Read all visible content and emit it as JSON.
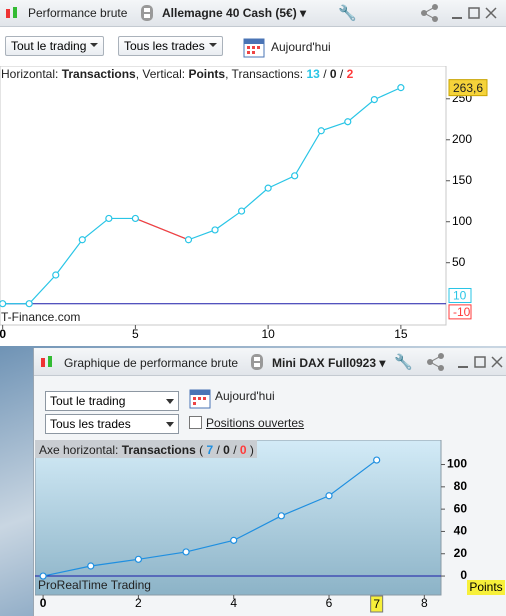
{
  "top_window": {
    "title": "Performance brute",
    "instrument": "Allemagne 40 Cash (5€)",
    "scope": "Tout le trading",
    "trades": "Tous les trades",
    "period": "Aujourd'hui"
  },
  "bottom_window": {
    "title": "Graphique de performance brute",
    "instrument": "Mini DAX Full0923",
    "scope": "Tout le trading",
    "trades": "Tous les trades",
    "period": "Aujourd'hui",
    "checkbox": "Positions ouvertes"
  },
  "chart_data": [
    {
      "type": "line",
      "header": {
        "horizontal": "Horizontal:",
        "x_label": "Transactions",
        "vertical": ", Vertical:",
        "y_label": "Points",
        "count_label": ", Transactions:",
        "separator": "/",
        "counts": [
          13,
          0,
          2
        ]
      },
      "x": [
        0,
        1,
        2,
        3,
        4,
        5,
        7,
        8,
        9,
        10,
        11,
        12,
        13,
        14,
        15
      ],
      "values": [
        0,
        0,
        35,
        78,
        104,
        104,
        78,
        90,
        113,
        141,
        156,
        211,
        222,
        249,
        263.6
      ],
      "last_label": {
        "value": 263.6,
        "label": "263,6"
      },
      "side_labels": [
        10,
        -10
      ],
      "xlim": [
        -0.1,
        16.7
      ],
      "ylim": [
        -26,
        290
      ],
      "xticks": [
        0,
        5,
        10,
        15
      ],
      "yticks": [
        50,
        100,
        150,
        200,
        250
      ],
      "color": "#29c5e6",
      "loss_color": "#ff3b3b",
      "watermark": "T-Finance.com",
      "grid": false
    },
    {
      "type": "line",
      "header": {
        "horizontal": "Axe horizontal:",
        "x_label": "Transactions",
        "open": "(",
        "separator": "/",
        "close": ")",
        "counts": [
          7,
          0,
          0
        ]
      },
      "y_label": "Points",
      "x": [
        0,
        1,
        2,
        3,
        4,
        5,
        6,
        7
      ],
      "values": [
        0,
        9,
        15,
        21.6,
        32,
        54,
        72,
        104
      ],
      "highlight_x": 7,
      "xlim": [
        -0.17,
        8.35
      ],
      "ylim": [
        -17,
        122
      ],
      "xticks": [
        0,
        2,
        4,
        6,
        8
      ],
      "yticks": [
        0,
        20,
        40,
        60,
        80,
        100
      ],
      "color": "#1f8fe0",
      "loss_color": "#ff3b3b",
      "watermark": "ProRealTime Trading",
      "grid": false
    }
  ]
}
